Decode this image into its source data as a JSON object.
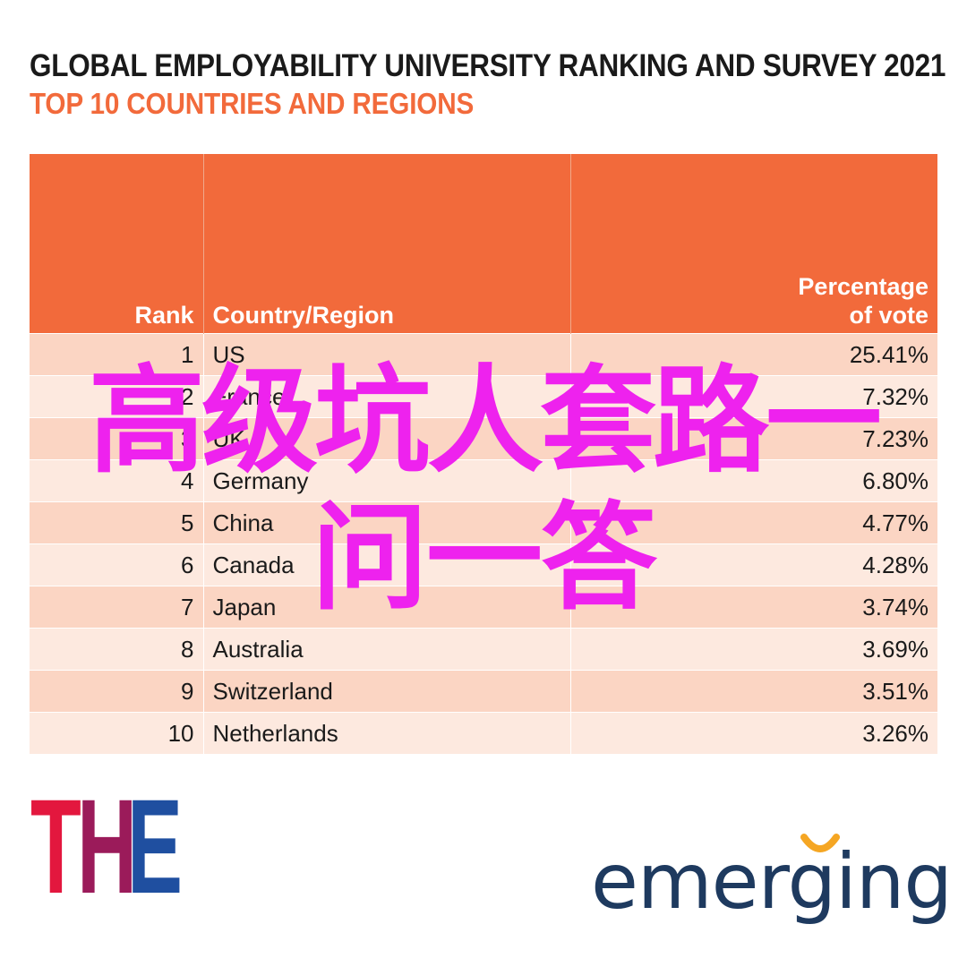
{
  "header": {
    "title": "GLOBAL EMPLOYABILITY UNIVERSITY RANKING AND SURVEY 2021",
    "subtitle": "TOP 10 COUNTRIES AND REGIONS"
  },
  "table": {
    "columns": {
      "rank": "Rank",
      "country": "Country/Region",
      "pct_line1": "Percentage",
      "pct_line2": "of vote"
    },
    "rows": [
      {
        "rank": "1",
        "country": "US",
        "pct": "25.41%"
      },
      {
        "rank": "2",
        "country": "France",
        "pct": "7.32%"
      },
      {
        "rank": "3",
        "country": "UK",
        "pct": "7.23%"
      },
      {
        "rank": "4",
        "country": "Germany",
        "pct": "6.80%"
      },
      {
        "rank": "5",
        "country": "China",
        "pct": "4.77%"
      },
      {
        "rank": "6",
        "country": "Canada",
        "pct": "4.28%"
      },
      {
        "rank": "7",
        "country": "Japan",
        "pct": "3.74%"
      },
      {
        "rank": "8",
        "country": "Australia",
        "pct": "3.69%"
      },
      {
        "rank": "9",
        "country": "Switzerland",
        "pct": "3.51%"
      },
      {
        "rank": "10",
        "country": "Netherlands",
        "pct": "3.26%"
      }
    ]
  },
  "overlay": {
    "line1": "高级坑人套路一",
    "line2": "问一答"
  },
  "logos": {
    "the": {
      "letters": [
        "T",
        "H",
        "E"
      ],
      "colors": [
        "#e3173e",
        "#9b1b5a",
        "#1f4fa0"
      ]
    },
    "emerging": {
      "text": "emerging",
      "icon": "smile-arc-icon"
    }
  },
  "colors": {
    "header_bg": "#f26a3b",
    "row_odd": "#fbd5c3",
    "row_even": "#fde9df",
    "subtitle": "#f26a3b",
    "overlay": "#ee22ee",
    "emerging_text": "#1e3a5f",
    "emerging_accent": "#f5a623"
  },
  "chart_data": {
    "type": "table",
    "title": "GLOBAL EMPLOYABILITY UNIVERSITY RANKING AND SURVEY 2021",
    "subtitle": "TOP 10 COUNTRIES AND REGIONS",
    "columns": [
      "Rank",
      "Country/Region",
      "Percentage of vote"
    ],
    "categories": [
      "US",
      "France",
      "UK",
      "Germany",
      "China",
      "Canada",
      "Japan",
      "Australia",
      "Switzerland",
      "Netherlands"
    ],
    "values": [
      25.41,
      7.32,
      7.23,
      6.8,
      4.77,
      4.28,
      3.74,
      3.69,
      3.51,
      3.26
    ]
  }
}
